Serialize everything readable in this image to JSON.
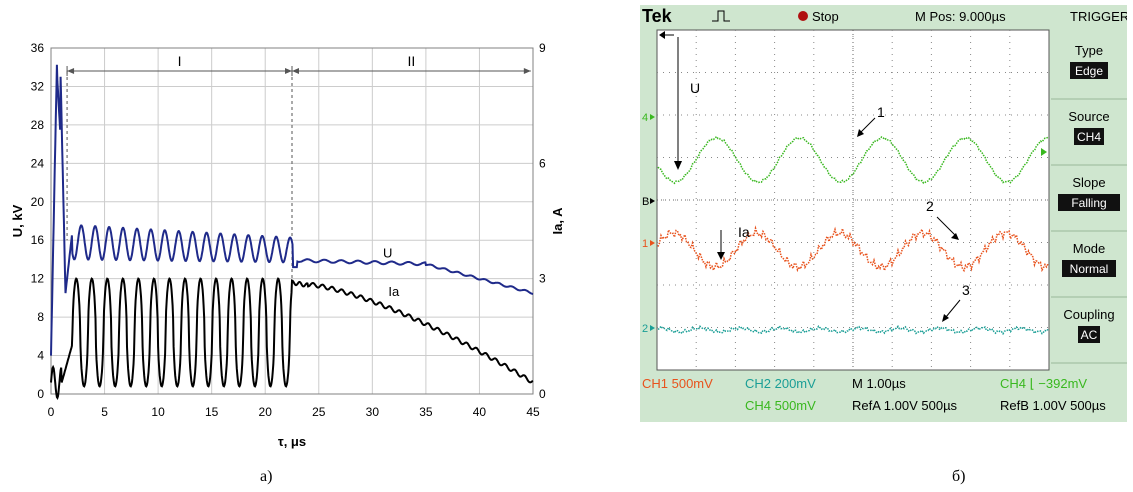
{
  "chart_data": [
    {
      "type": "line",
      "xlabel": "τ, μs",
      "ylabel": "U, kV",
      "y2label": "Ia, A",
      "xlim": [
        0,
        45
      ],
      "ylim": [
        0,
        36
      ],
      "y2lim": [
        0,
        9
      ],
      "x_ticks": [
        "0",
        "5",
        "10",
        "15",
        "20",
        "25",
        "30",
        "35",
        "40",
        "45"
      ],
      "y_ticks": [
        "0",
        "4",
        "8",
        "12",
        "16",
        "20",
        "24",
        "28",
        "32",
        "36"
      ],
      "y2_ticks": [
        "0",
        "3",
        "6",
        "9"
      ],
      "grid": true,
      "regions": [
        {
          "label": "I",
          "from": 1.5,
          "to": 22.5
        },
        {
          "label": "II",
          "from": 22.5,
          "to": 44.8
        }
      ],
      "series": [
        {
          "name": "U",
          "color": "#1f2a8a",
          "axis": "left"
        },
        {
          "name": "Ia",
          "color": "#000000",
          "axis": "right"
        }
      ]
    },
    {
      "type": "line",
      "title_left": "Tek",
      "status": "Stop",
      "mpos": "M Pos: 9.000µs",
      "menu": {
        "title": "TRIGGER",
        "items": [
          {
            "label": "Type",
            "value": "Edge"
          },
          {
            "label": "Source",
            "value": "CH4"
          },
          {
            "label": "Slope",
            "value": "Falling"
          },
          {
            "label": "Mode",
            "value": "Normal"
          },
          {
            "label": "Coupling",
            "value": "AC"
          }
        ]
      },
      "channel_markers": [
        "4",
        "B",
        "1",
        "2"
      ],
      "annotations": [
        "U",
        "1",
        "Ia",
        "2",
        "3"
      ],
      "footer": {
        "ch1": "CH1  500mV",
        "ch2": "CH2  200mV",
        "m": "M 1.00µs",
        "ch4trig": "CH4 ⌊ −392mV",
        "ch4": "CH4  500mV",
        "refa": "RefA 1.00V 500µs",
        "refb": "RefB 1.00V 500µs"
      },
      "colors": {
        "ch4": "#39b81f",
        "ch1": "#e8521c",
        "ch2": "#1a9e96"
      }
    }
  ],
  "captions": {
    "a": "а)",
    "b": "б)"
  }
}
